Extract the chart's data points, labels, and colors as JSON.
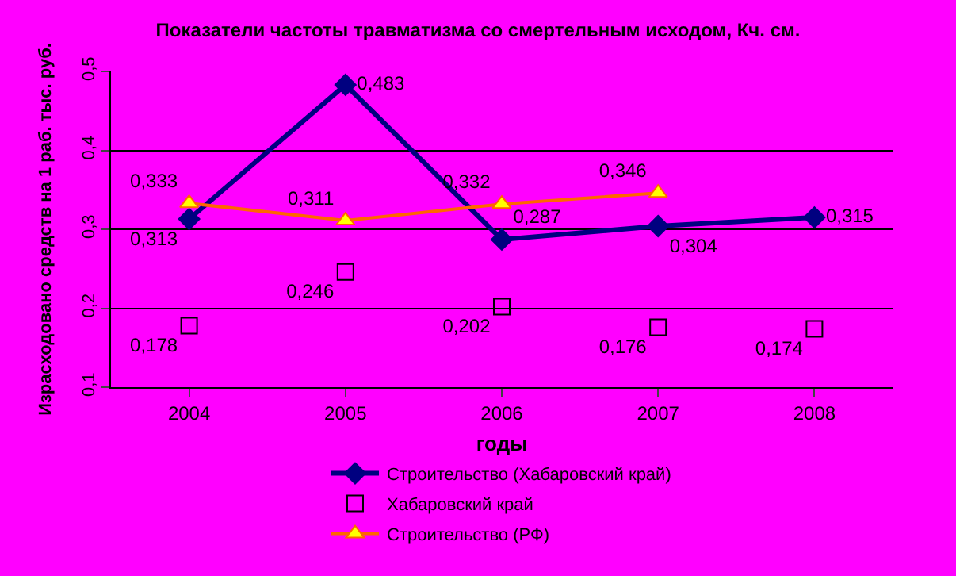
{
  "chart_data": {
    "type": "line",
    "title": "Показатели частоты травматизма со смертельным исходом, Кч. см.",
    "xlabel": "годы",
    "ylabel": "Израсходовано средств на 1 раб. тыс. руб.",
    "categories": [
      "2004",
      "2005",
      "2006",
      "2007",
      "2008"
    ],
    "series": [
      {
        "name": "Строительство (Хабаровский край)",
        "color": "#000080",
        "marker": "diamond",
        "values": [
          0.313,
          0.483,
          0.287,
          0.304,
          0.315
        ],
        "value_labels": [
          "0,313",
          "0,483",
          "0,287",
          "0,304",
          "0,315"
        ]
      },
      {
        "name": "Хабаровский край",
        "type": "scatter",
        "color": "#000000",
        "marker": "square",
        "values": [
          0.178,
          0.246,
          0.202,
          0.176,
          0.174
        ],
        "value_labels": [
          "0,178",
          "0,246",
          "0,202",
          "0,176",
          "0,174"
        ]
      },
      {
        "name": "Строительство (РФ)",
        "color": "#ff6600",
        "marker": "triangle",
        "values": [
          0.333,
          0.311,
          0.332,
          0.346,
          null
        ],
        "value_labels": [
          "0,333",
          "0,311",
          "0,332",
          "0,346",
          null
        ]
      }
    ],
    "ylim": [
      0.1,
      0.5
    ],
    "yticks": [
      {
        "value": 0.1,
        "label": "0,1"
      },
      {
        "value": 0.2,
        "label": "0,2"
      },
      {
        "value": 0.3,
        "label": "0,3"
      },
      {
        "value": 0.4,
        "label": "0,4"
      },
      {
        "value": 0.5,
        "label": "0,5"
      }
    ],
    "grid": "y",
    "legend": "bottom"
  }
}
